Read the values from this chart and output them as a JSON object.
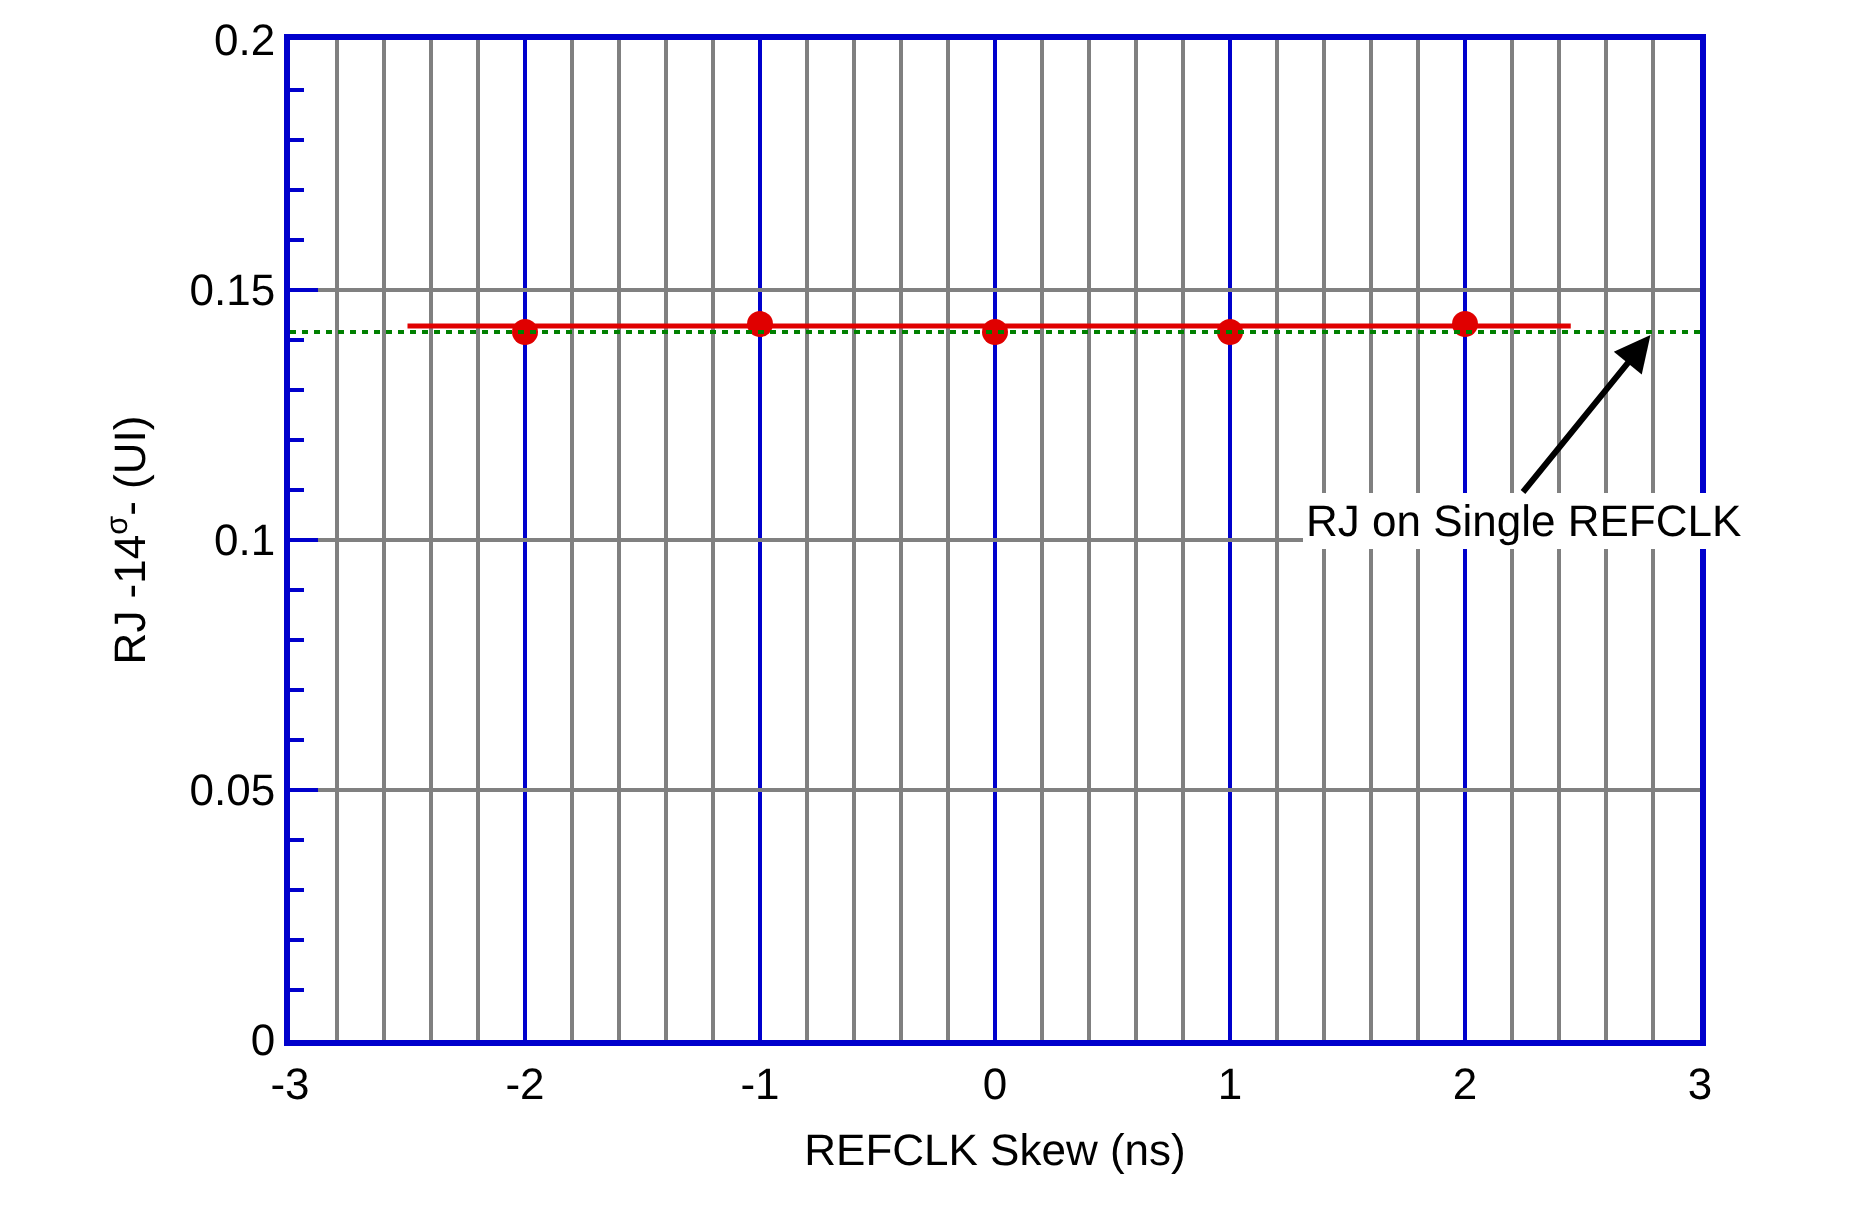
{
  "chart_data": {
    "type": "scatter",
    "xlabel": "REFCLK Skew (ns)",
    "ylabel": "RJ -14$^{σ}$- (UI)",
    "xlim": [
      -3,
      3
    ],
    "xticks": [
      -3,
      -2,
      -1,
      0,
      1,
      2,
      3
    ],
    "ylim": [
      0,
      0.2
    ],
    "yticks": [
      0,
      0.05,
      0.1,
      0.15,
      0.2
    ],
    "grid": true,
    "series": [
      {
        "type": "scatter",
        "color": "#e00000",
        "marker": "circle",
        "x": [
          -2,
          -1,
          0,
          1,
          2
        ],
        "values": [
          0.1416,
          0.1432,
          0.1416,
          0.1416,
          0.1432
        ]
      },
      {
        "type": "line",
        "color": "#e00000",
        "marker": "none",
        "x": [
          -2.5,
          2.45
        ],
        "values": [
          0.1428,
          0.1428
        ]
      }
    ],
    "ref_lines": [
      {
        "axis": "y",
        "value": 0.1416,
        "color": "#008000",
        "line_style": "dotted"
      }
    ],
    "annotations": [
      {
        "text": "RJ on Single REFCLK",
        "x": 2.8,
        "y": 0.1416
      }
    ]
  }
}
